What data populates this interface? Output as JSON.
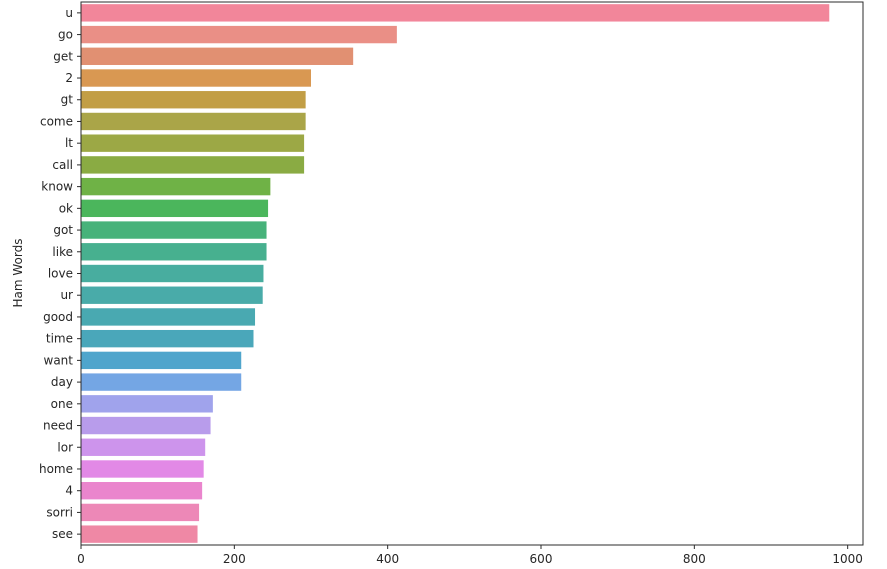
{
  "chart_data": {
    "type": "bar",
    "orientation": "horizontal",
    "ylabel": "Ham Words",
    "xlabel": "",
    "xlim": [
      0,
      1020
    ],
    "xticks": [
      0,
      200,
      400,
      600,
      800,
      1000
    ],
    "grid": false,
    "legend": "none",
    "categories": [
      "u",
      "go",
      "get",
      "2",
      "gt",
      "come",
      "lt",
      "call",
      "know",
      "ok",
      "got",
      "like",
      "love",
      "ur",
      "good",
      "time",
      "want",
      "day",
      "one",
      "need",
      "lor",
      "home",
      "4",
      "sorri",
      "see"
    ],
    "values": [
      976,
      412,
      355,
      300,
      293,
      293,
      291,
      291,
      247,
      244,
      242,
      242,
      238,
      237,
      227,
      225,
      209,
      209,
      172,
      169,
      162,
      160,
      158,
      154,
      152
    ],
    "colors": [
      "#f2869a",
      "#ea8f86",
      "#e19072",
      "#d99852",
      "#c29e45",
      "#aaa548",
      "#9ca845",
      "#8aab43",
      "#6fb246",
      "#4bb65c",
      "#47b27a",
      "#47b08f",
      "#48ad9f",
      "#49aba9",
      "#49a9b1",
      "#4aa7ba",
      "#4fa5cc",
      "#74a6e4",
      "#a0a3ec",
      "#b89ceb",
      "#cd94ec",
      "#e289e6",
      "#ea85cd",
      "#ed88b7",
      "#ef88a5"
    ]
  }
}
